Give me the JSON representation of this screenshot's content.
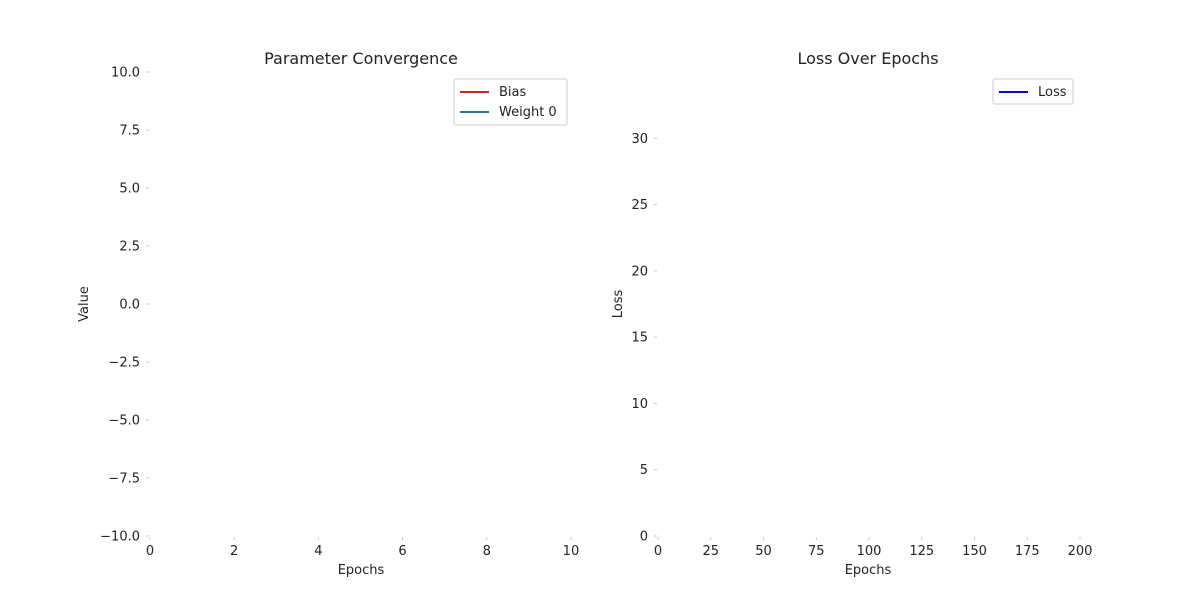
{
  "chart_data": [
    {
      "type": "line",
      "title": "Parameter Convergence",
      "xlabel": "Epochs",
      "ylabel": "Value",
      "xlim": [
        0,
        10.5
      ],
      "ylim": [
        -10,
        10
      ],
      "xticks": [
        0,
        2,
        4,
        6,
        8,
        10
      ],
      "xtick_labels": [
        "0",
        "2",
        "4",
        "6",
        "8",
        "10"
      ],
      "yticks": [
        -10,
        -7.5,
        -5,
        -2.5,
        0,
        2.5,
        5,
        7.5,
        10
      ],
      "ytick_labels": [
        "−10.0",
        "−7.5",
        "−5.0",
        "−2.5",
        "0.0",
        "2.5",
        "5.0",
        "7.5",
        "10.0"
      ],
      "grid": false,
      "legend_position": "top-right",
      "series": [
        {
          "name": "Bias",
          "color": "#e41a1c",
          "x": [],
          "y": []
        },
        {
          "name": "Weight 0",
          "color": "#1f77b4",
          "x": [],
          "y": []
        }
      ]
    },
    {
      "type": "line",
      "title": "Loss Over Epochs",
      "xlabel": "Epochs",
      "ylabel": "Loss",
      "xlim": [
        0,
        200
      ],
      "ylim": [
        0,
        35
      ],
      "xticks": [
        0,
        25,
        50,
        75,
        100,
        125,
        150,
        175,
        200
      ],
      "xtick_labels": [
        "0",
        "25",
        "50",
        "75",
        "100",
        "125",
        "150",
        "175",
        "200"
      ],
      "yticks": [
        0,
        5,
        10,
        15,
        20,
        25,
        30
      ],
      "ytick_labels": [
        "0",
        "5",
        "10",
        "15",
        "20",
        "25",
        "30"
      ],
      "grid": false,
      "legend_position": "top-right",
      "series": [
        {
          "name": "Loss",
          "color": "#0000ff",
          "x": [],
          "y": []
        }
      ]
    }
  ]
}
